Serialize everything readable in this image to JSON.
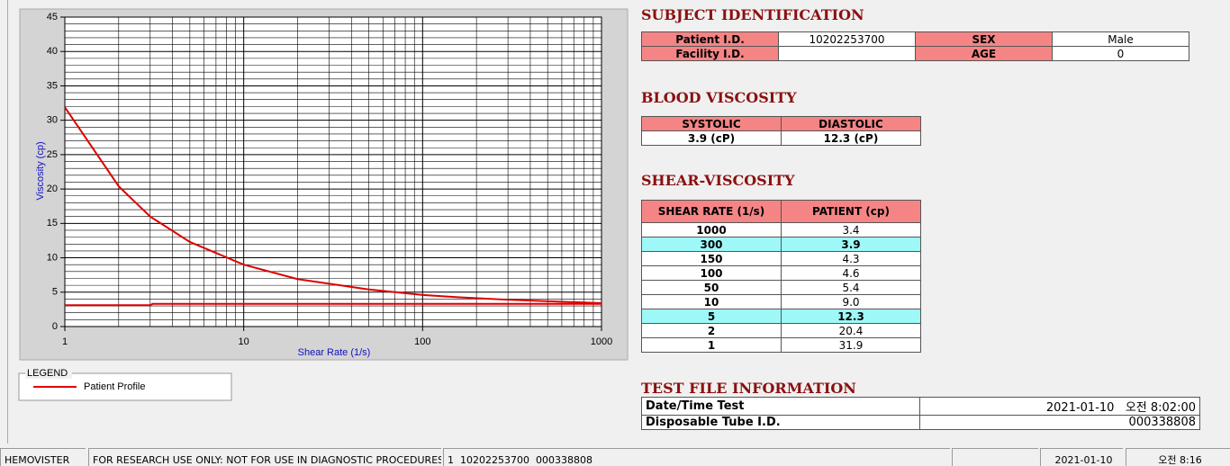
{
  "chart_data": {
    "type": "line",
    "x_label": "Shear Rate (1/s)",
    "y_label": "Viscosity (cp)",
    "log_x": true,
    "grid": true,
    "xlim": [
      1,
      1000
    ],
    "xticks": [
      1,
      10,
      100,
      1000
    ],
    "ylim": [
      0,
      45
    ],
    "yticks": [
      0,
      5,
      10,
      15,
      20,
      25,
      30,
      35,
      40,
      45
    ],
    "legend_title": "LEGEND",
    "series": [
      {
        "name": "Patient Profile",
        "color": "#dd0000",
        "x": [
          1,
          2,
          3,
          5,
          10,
          20,
          50,
          100,
          150,
          300,
          1000
        ],
        "values": [
          31.9,
          20.4,
          16.0,
          12.3,
          9.0,
          6.9,
          5.4,
          4.6,
          4.3,
          3.9,
          3.4
        ]
      },
      {
        "color": "#dd0000",
        "x": [
          1,
          3,
          3.1,
          1000
        ],
        "values": [
          3.1,
          3.1,
          3.3,
          3.3
        ]
      }
    ]
  },
  "subject": {
    "title": "SUBJECT IDENTIFICATION",
    "patient_id": {
      "label": "Patient I.D.",
      "value": "10202253700"
    },
    "sex": {
      "label": "SEX",
      "value": "Male"
    },
    "facility_id": {
      "label": "Facility I.D."
    },
    "age": {
      "label": "AGE",
      "value": "0"
    }
  },
  "blood_viscosity": {
    "title": "BLOOD VISCOSITY",
    "headers": [
      "SYSTOLIC",
      "DIASTOLIC"
    ],
    "values": [
      "3.9 (cP)",
      "12.3 (cP)"
    ]
  },
  "shear_viscosity": {
    "title": "SHEAR-VISCOSITY",
    "headers": [
      "SHEAR RATE (1/s)",
      "PATIENT (cp)"
    ],
    "rows": [
      [
        "1000",
        "3.4"
      ],
      [
        "300",
        "3.9"
      ],
      [
        "150",
        "4.3"
      ],
      [
        "100",
        "4.6"
      ],
      [
        "50",
        "5.4"
      ],
      [
        "10",
        "9.0"
      ],
      [
        "5",
        "12.3"
      ],
      [
        "2",
        "20.4"
      ],
      [
        "1",
        "31.9"
      ]
    ],
    "highlight_rows": [
      1,
      6
    ]
  },
  "test_file": {
    "title": "TEST FILE INFORMATION",
    "rows": [
      [
        "Date/Time Test",
        "2021-01-10   오전 8:02:00"
      ],
      [
        "Disposable Tube I.D.",
        "000338808"
      ]
    ]
  },
  "status_bar": [
    "HEMOVISTER",
    "FOR RESEARCH USE ONLY: NOT FOR USE IN DIAGNOSTIC PROCEDURES",
    "1  10202253700  000338808",
    "2021-01-10",
    "오전 8:16"
  ]
}
